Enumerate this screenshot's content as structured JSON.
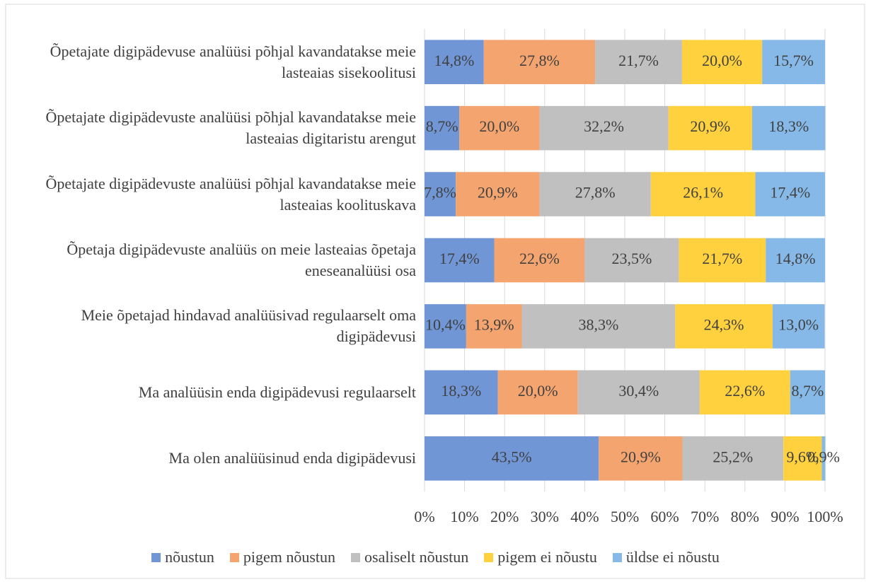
{
  "chart_data": {
    "type": "stacked-bar-horizontal",
    "categories": [
      "Õpetajate digipädevuse analüüsi põhjal kavandatakse meie lasteaias sisekoolitusi",
      "Õpetajate digipädevuste analüüsi põhjal kavandatakse meie lasteaias digitaristu arengut",
      "Õpetajate digipädevuste analüüsi põhjal kavandatakse meie lasteaias koolituskava",
      "Õpetaja digipädevuste analüüs on meie lasteaias õpetaja eneseanalüüsi osa",
      "Meie õpetajad hindavad analüüsivad regulaarselt oma digipädevusi",
      "Ma analüüsin enda digipädevusi regulaarselt",
      "Ma olen analüüsinud enda digipädevusi"
    ],
    "series": [
      {
        "name": "nõustun",
        "color": "#7196d6",
        "values": [
          14.8,
          8.7,
          7.8,
          17.4,
          10.4,
          18.3,
          43.5
        ],
        "value_labels": [
          "14,8%",
          "8,7%",
          "7,8%",
          "17,4%",
          "10,4%",
          "18,3%",
          "43,5%"
        ]
      },
      {
        "name": "pigem nõustun",
        "color": "#f4a46f",
        "values": [
          27.8,
          20.0,
          20.9,
          22.6,
          13.9,
          20.0,
          20.9
        ],
        "value_labels": [
          "27,8%",
          "20,0%",
          "20,9%",
          "22,6%",
          "13,9%",
          "20,0%",
          "20,9%"
        ]
      },
      {
        "name": "osaliselt nõustun",
        "color": "#c0c0c0",
        "values": [
          21.7,
          32.2,
          27.8,
          23.5,
          38.3,
          30.4,
          25.2
        ],
        "value_labels": [
          "21,7%",
          "32,2%",
          "27,8%",
          "23,5%",
          "38,3%",
          "30,4%",
          "25,2%"
        ]
      },
      {
        "name": "pigem ei nõustu",
        "color": "#ffd13f",
        "values": [
          20.0,
          20.9,
          26.1,
          21.7,
          24.3,
          22.6,
          9.6
        ],
        "value_labels": [
          "20,0%",
          "20,9%",
          "26,1%",
          "21,7%",
          "24,3%",
          "22,6%",
          "9,6%"
        ]
      },
      {
        "name": "üldse ei nõustu",
        "color": "#86b9e8",
        "values": [
          15.7,
          18.3,
          17.4,
          14.8,
          13.0,
          8.7,
          0.9
        ],
        "value_labels": [
          "15,7%",
          "18,3%",
          "17,4%",
          "14,8%",
          "13,0%",
          "8,7%",
          "0,9%"
        ]
      }
    ],
    "xlim": [
      0,
      100
    ],
    "xticks": [
      {
        "value": 0,
        "label": "0%"
      },
      {
        "value": 10,
        "label": "10%"
      },
      {
        "value": 20,
        "label": "20%"
      },
      {
        "value": 30,
        "label": "30%"
      },
      {
        "value": 40,
        "label": "40%"
      },
      {
        "value": 50,
        "label": "50%"
      },
      {
        "value": 60,
        "label": "60%"
      },
      {
        "value": 70,
        "label": "70%"
      },
      {
        "value": 80,
        "label": "80%"
      },
      {
        "value": 90,
        "label": "90%"
      },
      {
        "value": 100,
        "label": "100%"
      }
    ],
    "grid": true,
    "legend": "bottom"
  }
}
